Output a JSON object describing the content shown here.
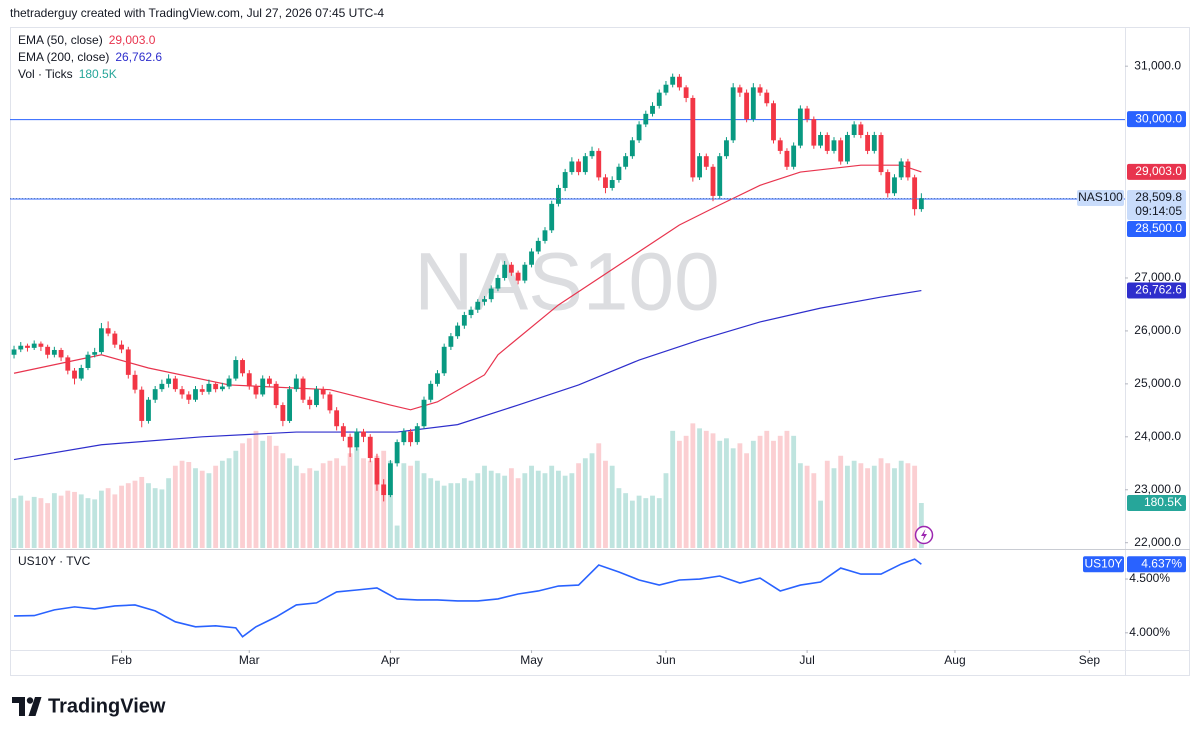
{
  "chart_data": {
    "type": "candlestick",
    "header": "thetraderguy created with TradingView.com, Jul 27, 2026 07:45 UTC-4",
    "watermark": "NAS100",
    "symbol": "NAS100",
    "last_price_label": "28,509.8",
    "countdown": "09:14:05",
    "brand": "TradingView",
    "up_color": "#089981",
    "down_color": "#f23645",
    "xlim": [
      -0.6,
      165.3
    ],
    "xticks": [
      {
        "value": 16,
        "label": "Feb"
      },
      {
        "value": 35,
        "label": "Mar"
      },
      {
        "value": 56,
        "label": "Apr"
      },
      {
        "value": 77,
        "label": "May"
      },
      {
        "value": 97,
        "label": "Jun"
      },
      {
        "value": 118,
        "label": "Jul"
      },
      {
        "value": 140,
        "label": "Aug"
      },
      {
        "value": 160,
        "label": "Sep"
      }
    ],
    "ylim": [
      21900,
      31740
    ],
    "yticks": [
      {
        "value": 31000,
        "label": "31,000.0"
      },
      {
        "value": 27000,
        "label": "27,000.0"
      },
      {
        "value": 26000,
        "label": "26,000.0"
      },
      {
        "value": 25000,
        "label": "25,000.0"
      },
      {
        "value": 24000,
        "label": "24,000.0"
      },
      {
        "value": 23000,
        "label": "23,000.0"
      },
      {
        "value": 22000,
        "label": "22,000.0"
      }
    ],
    "grid": false,
    "ohlc": [
      [
        25550,
        25720,
        25480,
        25650
      ],
      [
        25650,
        25790,
        25600,
        25720
      ],
      [
        25720,
        25760,
        25610,
        25680
      ],
      [
        25680,
        25820,
        25640,
        25760
      ],
      [
        25760,
        25800,
        25620,
        25700
      ],
      [
        25700,
        25740,
        25480,
        25550
      ],
      [
        25550,
        25700,
        25500,
        25640
      ],
      [
        25640,
        25680,
        25430,
        25500
      ],
      [
        25500,
        25540,
        25180,
        25250
      ],
      [
        25250,
        25300,
        24990,
        25100
      ],
      [
        25100,
        25360,
        25060,
        25300
      ],
      [
        25300,
        25610,
        25260,
        25550
      ],
      [
        25550,
        25680,
        25500,
        25600
      ],
      [
        25600,
        26150,
        25560,
        26050
      ],
      [
        26050,
        26180,
        25900,
        25950
      ],
      [
        25950,
        26000,
        25680,
        25740
      ],
      [
        25740,
        25820,
        25580,
        25650
      ],
      [
        25650,
        25700,
        25100,
        25170
      ],
      [
        25170,
        25250,
        24820,
        24890
      ],
      [
        24890,
        24950,
        24180,
        24300
      ],
      [
        24300,
        24750,
        24250,
        24700
      ],
      [
        24700,
        24960,
        24640,
        24900
      ],
      [
        24900,
        25080,
        24850,
        25000
      ],
      [
        25000,
        25180,
        24930,
        25100
      ],
      [
        25100,
        25150,
        24850,
        24900
      ],
      [
        24900,
        24960,
        24720,
        24800
      ],
      [
        24800,
        24860,
        24620,
        24700
      ],
      [
        24700,
        24960,
        24660,
        24900
      ],
      [
        24900,
        24980,
        24790,
        24850
      ],
      [
        24850,
        25080,
        24800,
        25000
      ],
      [
        25000,
        25040,
        24840,
        24900
      ],
      [
        24900,
        25020,
        24860,
        24950
      ],
      [
        24950,
        25160,
        24900,
        25100
      ],
      [
        25100,
        25520,
        25060,
        25450
      ],
      [
        25450,
        25480,
        25140,
        25200
      ],
      [
        25200,
        25260,
        24890,
        24950
      ],
      [
        24950,
        25000,
        24720,
        24800
      ],
      [
        24800,
        25160,
        24760,
        25100
      ],
      [
        25100,
        25150,
        24940,
        25000
      ],
      [
        25000,
        25050,
        24540,
        24600
      ],
      [
        24600,
        24650,
        24200,
        24300
      ],
      [
        24300,
        24960,
        24260,
        24900
      ],
      [
        24900,
        25180,
        24850,
        25100
      ],
      [
        25100,
        25140,
        24640,
        24700
      ],
      [
        24700,
        24760,
        24520,
        24600
      ],
      [
        24600,
        24960,
        24560,
        24900
      ],
      [
        24900,
        24950,
        24720,
        24800
      ],
      [
        24800,
        24850,
        24440,
        24500
      ],
      [
        24500,
        24560,
        24120,
        24200
      ],
      [
        24200,
        24260,
        23920,
        24000
      ],
      [
        24000,
        24060,
        23620,
        23800
      ],
      [
        23800,
        24160,
        23740,
        24100
      ],
      [
        24100,
        24150,
        23900,
        24000
      ],
      [
        24000,
        24050,
        23520,
        23600
      ],
      [
        23600,
        23680,
        22980,
        23100
      ],
      [
        23100,
        23200,
        22780,
        22900
      ],
      [
        22900,
        23560,
        22860,
        23500
      ],
      [
        23500,
        23950,
        23440,
        23900
      ],
      [
        23900,
        24160,
        23840,
        24100
      ],
      [
        24100,
        24150,
        23820,
        23900
      ],
      [
        23900,
        24260,
        23850,
        24200
      ],
      [
        24200,
        24760,
        24150,
        24700
      ],
      [
        24700,
        25060,
        24650,
        25000
      ],
      [
        25000,
        25260,
        24950,
        25200
      ],
      [
        25200,
        25760,
        25150,
        25700
      ],
      [
        25700,
        25960,
        25640,
        25900
      ],
      [
        25900,
        26160,
        25850,
        26100
      ],
      [
        26100,
        26360,
        26040,
        26300
      ],
      [
        26300,
        26460,
        26240,
        26400
      ],
      [
        26400,
        26600,
        26340,
        26550
      ],
      [
        26550,
        26660,
        26480,
        26600
      ],
      [
        26600,
        26860,
        26540,
        26800
      ],
      [
        26800,
        27060,
        26750,
        27000
      ],
      [
        27000,
        27320,
        26950,
        27250
      ],
      [
        27250,
        27300,
        27040,
        27100
      ],
      [
        27100,
        27140,
        26880,
        26950
      ],
      [
        26950,
        27300,
        26900,
        27250
      ],
      [
        27250,
        27560,
        27200,
        27500
      ],
      [
        27500,
        27760,
        27450,
        27700
      ],
      [
        27700,
        27960,
        27650,
        27900
      ],
      [
        27900,
        28460,
        27850,
        28400
      ],
      [
        28400,
        28760,
        28350,
        28700
      ],
      [
        28700,
        29060,
        28640,
        29000
      ],
      [
        29000,
        29280,
        28950,
        29200
      ],
      [
        29200,
        29250,
        28940,
        29000
      ],
      [
        29000,
        29360,
        28950,
        29300
      ],
      [
        29300,
        29480,
        29250,
        29400
      ],
      [
        29400,
        29450,
        28840,
        28900
      ],
      [
        28900,
        28960,
        28600,
        28700
      ],
      [
        28700,
        28920,
        28650,
        28850
      ],
      [
        28850,
        29160,
        28800,
        29100
      ],
      [
        29100,
        29360,
        29050,
        29300
      ],
      [
        29300,
        29660,
        29250,
        29600
      ],
      [
        29600,
        29960,
        29550,
        29900
      ],
      [
        29900,
        30160,
        29850,
        30100
      ],
      [
        30100,
        30320,
        30050,
        30250
      ],
      [
        30250,
        30560,
        30200,
        30500
      ],
      [
        30500,
        30720,
        30450,
        30650
      ],
      [
        30650,
        30860,
        30600,
        30800
      ],
      [
        30800,
        30850,
        30540,
        30600
      ],
      [
        30600,
        30640,
        30320,
        30400
      ],
      [
        30400,
        30450,
        28820,
        28900
      ],
      [
        28900,
        29360,
        28850,
        29300
      ],
      [
        29300,
        29350,
        29040,
        29100
      ],
      [
        29100,
        29150,
        28450,
        28550
      ],
      [
        28550,
        29360,
        28500,
        29300
      ],
      [
        29300,
        29660,
        29250,
        29600
      ],
      [
        29600,
        30680,
        29550,
        30600
      ],
      [
        30600,
        30650,
        30420,
        30500
      ],
      [
        30500,
        30560,
        29940,
        30000
      ],
      [
        30000,
        30680,
        29950,
        30600
      ],
      [
        30600,
        30660,
        30440,
        30500
      ],
      [
        30500,
        30560,
        30240,
        30300
      ],
      [
        30300,
        30350,
        29540,
        29600
      ],
      [
        29600,
        29650,
        29340,
        29400
      ],
      [
        29400,
        29450,
        29040,
        29100
      ],
      [
        29100,
        29560,
        29050,
        29500
      ],
      [
        29500,
        30260,
        29450,
        30200
      ],
      [
        30200,
        30250,
        29940,
        30000
      ],
      [
        30000,
        30050,
        29440,
        29500
      ],
      [
        29500,
        29760,
        29450,
        29700
      ],
      [
        29700,
        29750,
        29340,
        29400
      ],
      [
        29400,
        29660,
        29350,
        29600
      ],
      [
        29600,
        29650,
        29140,
        29200
      ],
      [
        29200,
        29760,
        29150,
        29700
      ],
      [
        29700,
        29960,
        29650,
        29900
      ],
      [
        29900,
        29950,
        29640,
        29700
      ],
      [
        29700,
        29760,
        29340,
        29400
      ],
      [
        29400,
        29760,
        29350,
        29700
      ],
      [
        29700,
        29750,
        28940,
        29000
      ],
      [
        29000,
        29050,
        28520,
        28600
      ],
      [
        28600,
        28960,
        28550,
        28900
      ],
      [
        28900,
        29260,
        28850,
        29200
      ],
      [
        29200,
        29250,
        28840,
        28900
      ],
      [
        28900,
        28950,
        28180,
        28300
      ],
      [
        28300,
        28600,
        28250,
        28509.8
      ]
    ],
    "volume": {
      "name": "Vol · Ticks",
      "value_label": "180.5K",
      "color": "#26a69a",
      "up_color": "#bfe4df",
      "down_color": "#fbcfd2",
      "ylim": [
        0,
        2090000
      ],
      "values": [
        200000,
        210000,
        190000,
        205000,
        200000,
        180000,
        220000,
        210000,
        230000,
        225000,
        215000,
        200000,
        195000,
        230000,
        240000,
        215000,
        250000,
        260000,
        270000,
        285000,
        260000,
        240000,
        235000,
        280000,
        330000,
        350000,
        345000,
        320000,
        310000,
        300000,
        330000,
        350000,
        360000,
        390000,
        420000,
        440000,
        470000,
        430000,
        450000,
        410000,
        380000,
        360000,
        330000,
        300000,
        320000,
        310000,
        340000,
        350000,
        360000,
        330000,
        380000,
        400000,
        360000,
        350000,
        370000,
        390000,
        350000,
        90000,
        340000,
        330000,
        350000,
        300000,
        280000,
        270000,
        250000,
        260000,
        260000,
        280000,
        270000,
        300000,
        330000,
        310000,
        300000,
        290000,
        320000,
        280000,
        300000,
        330000,
        310000,
        300000,
        330000,
        310000,
        290000,
        300000,
        340000,
        360000,
        380000,
        420000,
        350000,
        330000,
        240000,
        220000,
        190000,
        210000,
        200000,
        210000,
        200000,
        300000,
        470000,
        430000,
        450000,
        500000,
        480000,
        470000,
        460000,
        430000,
        440000,
        400000,
        420000,
        380000,
        430000,
        450000,
        470000,
        430000,
        450000,
        470000,
        450000,
        340000,
        330000,
        300000,
        190000,
        350000,
        320000,
        370000,
        330000,
        350000,
        340000,
        320000,
        330000,
        360000,
        340000,
        320000,
        350000,
        340000,
        330000,
        180500
      ]
    },
    "indicators": [
      {
        "name": "EMA (50, close)",
        "value_label": "29,003.0",
        "color": "#e8344e",
        "x": [
          0,
          13,
          20,
          32,
          47,
          56,
          59,
          63,
          70,
          72,
          81,
          90,
          99,
          105,
          111,
          117,
          126,
          132,
          135
        ],
        "values": [
          25200,
          25550,
          25300,
          24980,
          24890,
          24600,
          24510,
          24660,
          25170,
          25550,
          26490,
          27245,
          28000,
          28380,
          28750,
          29000,
          29130,
          29130,
          29003
        ]
      },
      {
        "name": "EMA (200, close)",
        "value_label": "26,762.6",
        "color": "#2e2ecc",
        "x": [
          0,
          13,
          28,
          42,
          57,
          66,
          75,
          84,
          93,
          102,
          111,
          120,
          129,
          135
        ],
        "values": [
          23570,
          23850,
          24000,
          24090,
          24090,
          24230,
          24600,
          24980,
          25450,
          25830,
          26170,
          26430,
          26640,
          26762.6
        ]
      }
    ],
    "hlines": [
      {
        "value": 30000,
        "label": "30,000.0",
        "color": "#2962ff"
      },
      {
        "value": 28500,
        "label": "28,500.0",
        "color": "#2962ff"
      }
    ],
    "lower_pane": {
      "type": "line",
      "name": "US10Y · TVC",
      "symbol": "US10Y",
      "value_label": "4.637%",
      "color": "#2962ff",
      "ylim": [
        3.84,
        4.77
      ],
      "yticks": [
        {
          "value": 4.5,
          "label": "4.500%"
        },
        {
          "value": 4,
          "label": "4.000%"
        }
      ],
      "x": [
        0,
        3,
        6,
        9,
        12,
        15,
        18,
        21,
        24,
        27,
        30,
        33,
        34,
        36,
        39,
        42,
        45,
        48,
        51,
        54,
        57,
        60,
        63,
        66,
        69,
        72,
        75,
        78,
        81,
        84,
        87,
        90,
        93,
        96,
        99,
        102,
        105,
        108,
        111,
        114,
        117,
        120,
        123,
        126,
        129,
        132,
        134,
        135
      ],
      "values": [
        4.157,
        4.16,
        4.213,
        4.241,
        4.222,
        4.25,
        4.259,
        4.204,
        4.102,
        4.056,
        4.065,
        4.046,
        3.963,
        4.056,
        4.148,
        4.259,
        4.278,
        4.38,
        4.398,
        4.417,
        4.315,
        4.306,
        4.306,
        4.296,
        4.296,
        4.315,
        4.361,
        4.389,
        4.435,
        4.444,
        4.63,
        4.565,
        4.491,
        4.444,
        4.491,
        4.5,
        4.528,
        4.463,
        4.509,
        4.389,
        4.444,
        4.472,
        4.602,
        4.546,
        4.546,
        4.639,
        4.685,
        4.637
      ]
    }
  }
}
